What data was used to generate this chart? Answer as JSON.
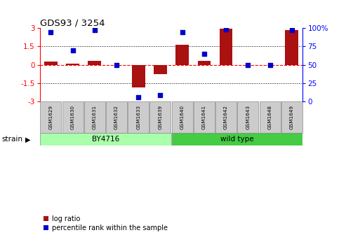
{
  "title": "GDS93 / 3254",
  "samples": [
    "GSM1629",
    "GSM1630",
    "GSM1631",
    "GSM1632",
    "GSM1633",
    "GSM1639",
    "GSM1640",
    "GSM1641",
    "GSM1642",
    "GSM1643",
    "GSM1648",
    "GSM1649"
  ],
  "log_ratio": [
    0.25,
    0.1,
    0.3,
    0.0,
    -1.85,
    -0.75,
    1.65,
    0.3,
    2.95,
    0.0,
    0.0,
    2.85
  ],
  "percentile": [
    95,
    70,
    97,
    50,
    5,
    8,
    95,
    65,
    98,
    50,
    50,
    97
  ],
  "n_group1": 6,
  "n_group2": 6,
  "group1_label": "BY4716",
  "group2_label": "wild type",
  "strain_label": "strain",
  "bar_color": "#AA1111",
  "dot_color": "#0000CC",
  "group1_color": "#AAFFAA",
  "group2_color": "#44CC44",
  "ylim": [
    -3,
    3
  ],
  "yticks_left": [
    -3,
    -1.5,
    0,
    1.5,
    3
  ],
  "yticks_right_vals": [
    0,
    25,
    50,
    75,
    100
  ],
  "legend_log_ratio": "log ratio",
  "legend_percentile": "percentile rank within the sample"
}
